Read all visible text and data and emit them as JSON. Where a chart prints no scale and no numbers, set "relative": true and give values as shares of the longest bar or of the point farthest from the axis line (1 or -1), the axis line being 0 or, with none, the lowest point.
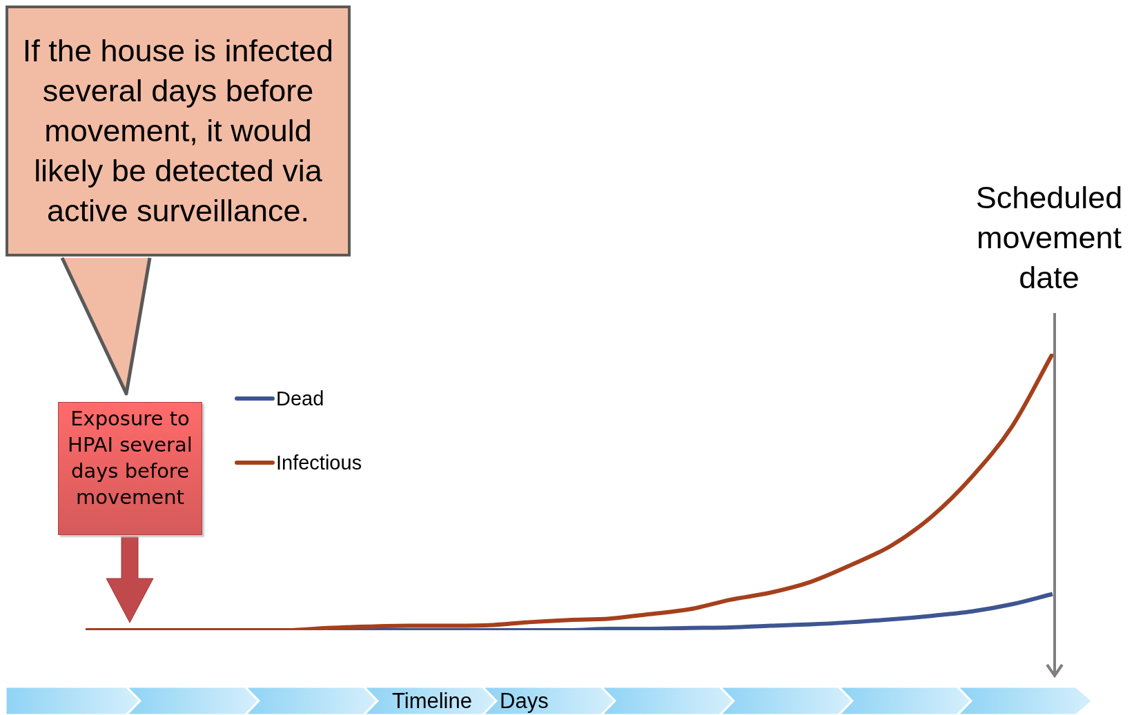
{
  "chart_data": {
    "type": "line",
    "relative": true,
    "categories": [
      null,
      null,
      null,
      null,
      null,
      null,
      null,
      null,
      null,
      null,
      null,
      null,
      null,
      null,
      null,
      null,
      null,
      null,
      null,
      null,
      null,
      null,
      null,
      null,
      null
    ],
    "series": [
      {
        "name": "Dead",
        "color": "#3f5592",
        "values": [
          null,
          null,
          null,
          null,
          null,
          null,
          0,
          0,
          0,
          0,
          0,
          0,
          0,
          0.005,
          0.005,
          0.008,
          0.01,
          0.016,
          0.021,
          0.029,
          0.039,
          0.052,
          0.068,
          0.094,
          0.131
        ]
      },
      {
        "name": "Infectious",
        "color": "#a5401c",
        "values": [
          0,
          0,
          0,
          0,
          0,
          0,
          0.008,
          0.013,
          0.016,
          0.016,
          0.018,
          0.029,
          0.037,
          0.042,
          0.058,
          0.076,
          0.11,
          0.136,
          0.175,
          0.236,
          0.306,
          0.411,
          0.555,
          0.738,
          1
        ]
      }
    ],
    "legend": "top left",
    "grid": false,
    "marker": "none",
    "line_style": "solid",
    "tick_labels": false,
    "annotations": [
      "If the house is infected several days before movement, it would likely be detected via active surveillance.",
      "Exposure to HPAI several days before movement",
      "Scheduled movement date",
      "Timeline",
      "Days"
    ]
  }
}
